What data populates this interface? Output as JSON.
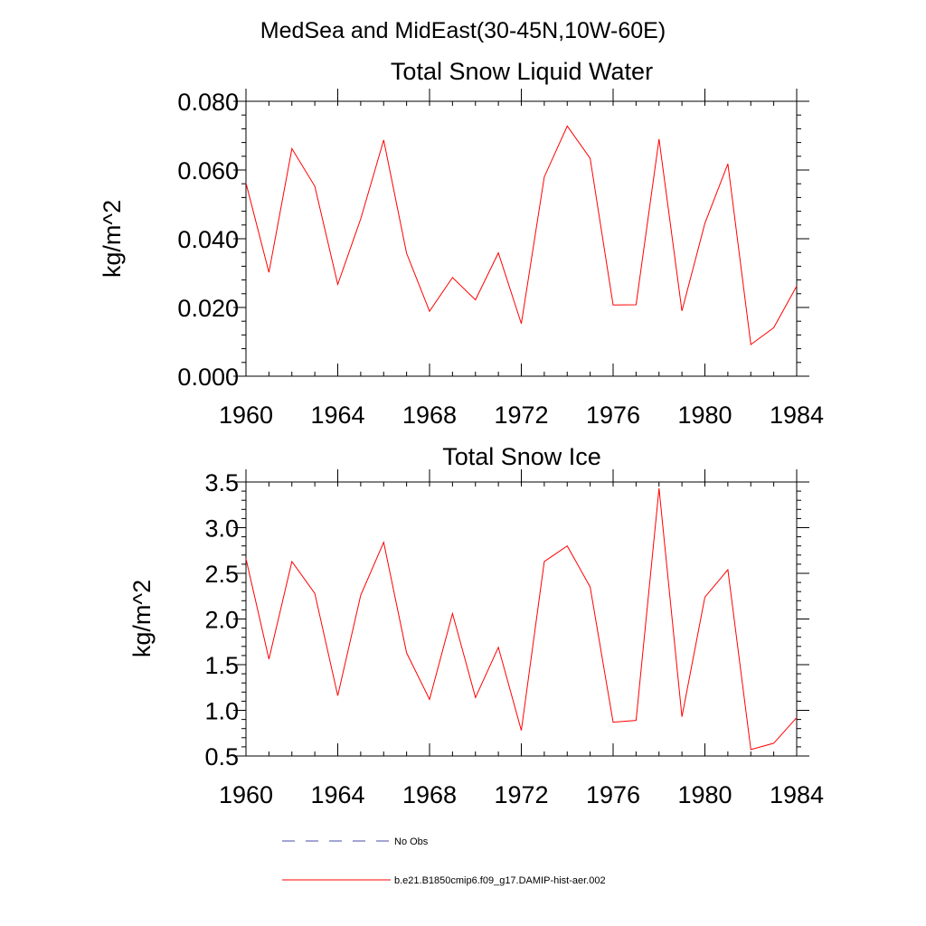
{
  "figure": {
    "suptitle": "MedSea and MidEast(30-45N,10W-60E)"
  },
  "legend": {
    "items": [
      {
        "label": "No Obs",
        "color": "#4a4aa8",
        "style": "dashed"
      },
      {
        "label": "b.e21.B1850cmip6.f09_g17.DAMIP-hist-aer.002",
        "color": "#ff0000",
        "style": "solid"
      }
    ]
  },
  "chart_data": [
    {
      "type": "line",
      "title": "Total Snow Liquid Water",
      "xlabel": "",
      "ylabel": "kg/m^2",
      "xlim": [
        1960,
        1984
      ],
      "ylim": [
        0.0,
        0.08
      ],
      "xticks": [
        1960,
        1964,
        1968,
        1972,
        1976,
        1980,
        1984
      ],
      "xtick_labels": [
        "1960",
        "1964",
        "1968",
        "1972",
        "1976",
        "1980",
        "1984"
      ],
      "yticks": [
        0.0,
        0.02,
        0.04,
        0.06,
        0.08
      ],
      "ytick_labels": [
        "0.000",
        "0.020",
        "0.040",
        "0.060",
        "0.080"
      ],
      "y_minor_step": 0.004,
      "grid": false,
      "series": [
        {
          "name": "b.e21.B1850cmip6.f09_g17.DAMIP-hist-aer.002",
          "color": "#ff0000",
          "x": [
            1960,
            1961,
            1962,
            1963,
            1964,
            1965,
            1966,
            1967,
            1968,
            1969,
            1970,
            1971,
            1972,
            1973,
            1974,
            1975,
            1976,
            1977,
            1978,
            1979,
            1980,
            1981,
            1982,
            1983,
            1984
          ],
          "y": [
            0.0562,
            0.0302,
            0.0662,
            0.0553,
            0.0267,
            0.0458,
            0.0687,
            0.0358,
            0.0189,
            0.0287,
            0.0222,
            0.0359,
            0.0153,
            0.058,
            0.0728,
            0.0634,
            0.0207,
            0.0208,
            0.069,
            0.019,
            0.0445,
            0.0618,
            0.0092,
            0.0141,
            0.0262
          ]
        }
      ]
    },
    {
      "type": "line",
      "title": "Total Snow Ice",
      "xlabel": "",
      "ylabel": "kg/m^2",
      "xlim": [
        1960,
        1984
      ],
      "ylim": [
        0.5,
        3.5
      ],
      "xticks": [
        1960,
        1964,
        1968,
        1972,
        1976,
        1980,
        1984
      ],
      "xtick_labels": [
        "1960",
        "1964",
        "1968",
        "1972",
        "1976",
        "1980",
        "1984"
      ],
      "yticks": [
        0.5,
        1.0,
        1.5,
        2.0,
        2.5,
        3.0,
        3.5
      ],
      "ytick_labels": [
        "0.5",
        "1.0",
        "1.5",
        "2.0",
        "2.5",
        "3.0",
        "3.5"
      ],
      "y_minor_step": 0.1,
      "grid": false,
      "series": [
        {
          "name": "b.e21.B1850cmip6.f09_g17.DAMIP-hist-aer.002",
          "color": "#ff0000",
          "x": [
            1960,
            1961,
            1962,
            1963,
            1964,
            1965,
            1966,
            1967,
            1968,
            1969,
            1970,
            1971,
            1972,
            1973,
            1974,
            1975,
            1976,
            1977,
            1978,
            1979,
            1980,
            1981,
            1982,
            1983,
            1984
          ],
          "y": [
            2.66,
            1.56,
            2.63,
            2.28,
            1.16,
            2.26,
            2.84,
            1.63,
            1.12,
            2.06,
            1.14,
            1.69,
            0.78,
            2.63,
            2.8,
            2.35,
            0.87,
            0.89,
            3.43,
            0.93,
            2.24,
            2.54,
            0.57,
            0.64,
            0.92
          ]
        }
      ]
    }
  ]
}
